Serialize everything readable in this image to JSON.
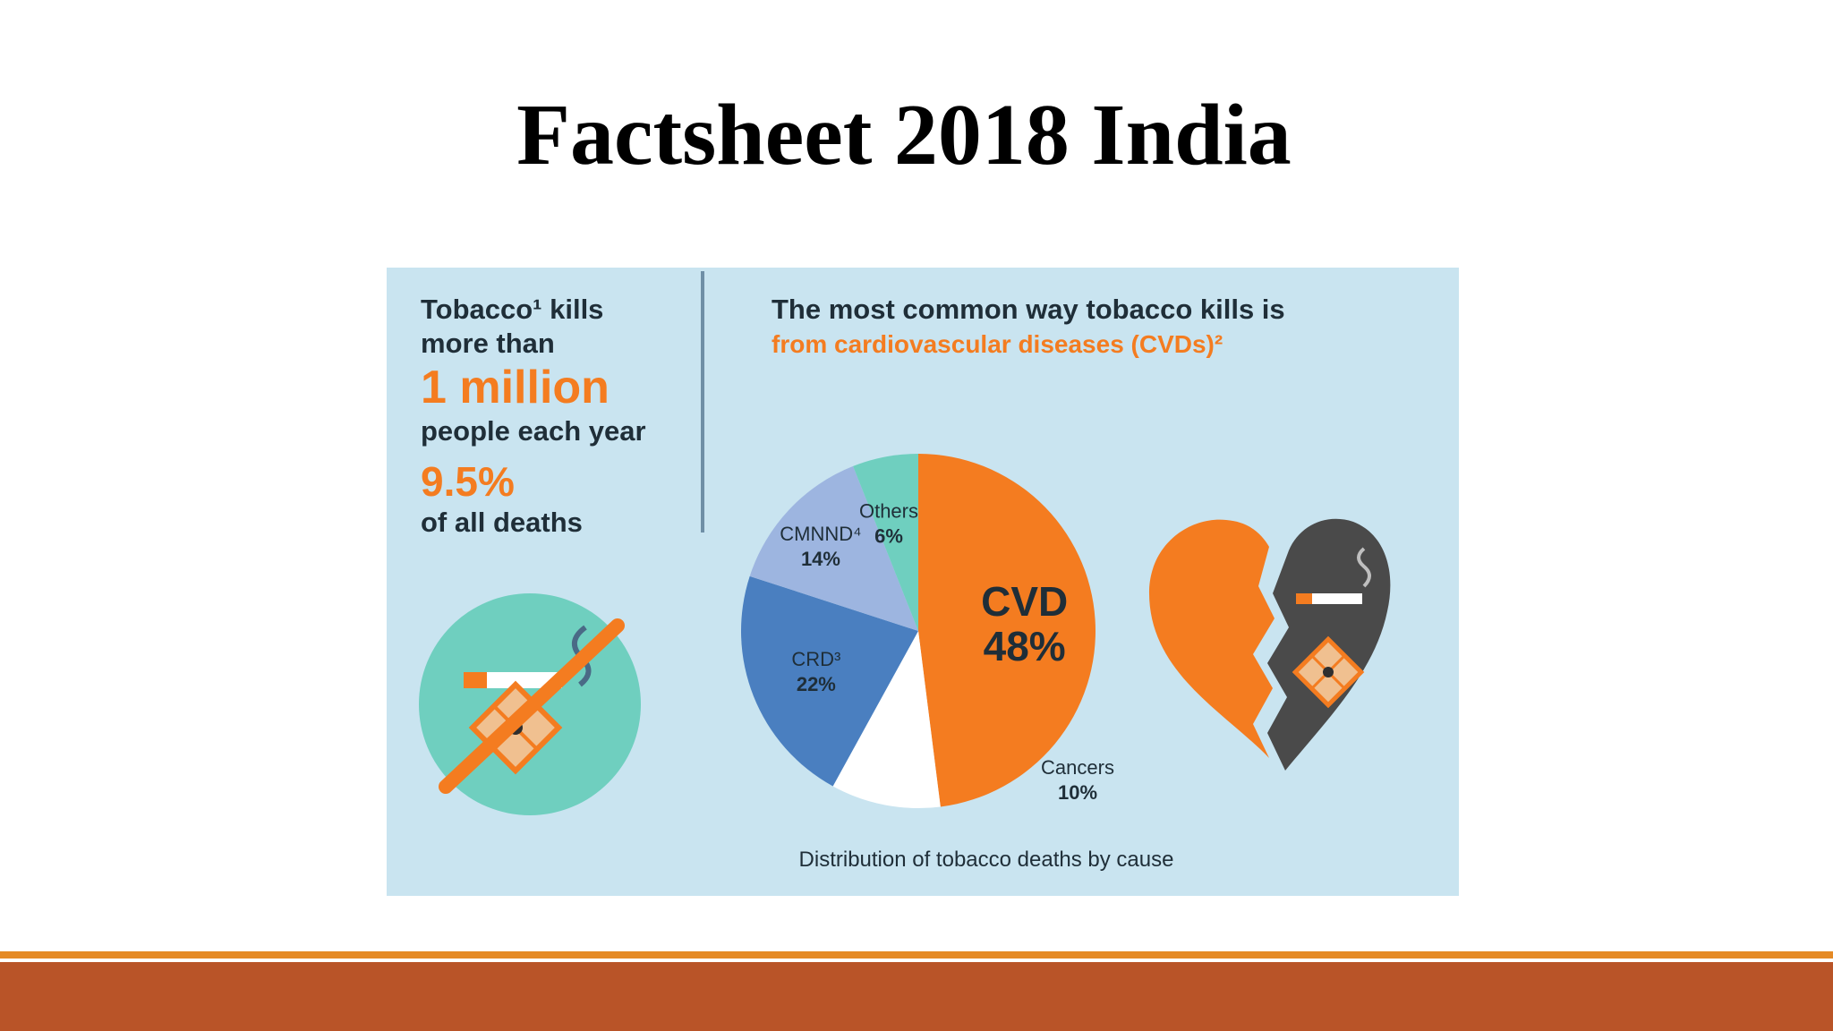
{
  "slide": {
    "title": "Factsheet 2018 India"
  },
  "stats": {
    "line1": "Tobacco¹ kills",
    "line2": "more than",
    "highlight": "1 million",
    "line3": "people each year",
    "percent": "9.5%",
    "line4": "of all deaths"
  },
  "headline": {
    "line1": "The most common way tobacco kills is",
    "line2": "from cardiovascular diseases (CVDs)²"
  },
  "chart_data": {
    "type": "pie",
    "title": "Distribution of tobacco deaths by cause",
    "slices": [
      {
        "label": "CVD",
        "value": 48,
        "display": "48%",
        "color": "#f47c20"
      },
      {
        "label": "Cancers",
        "value": 10,
        "display": "10%",
        "color": "#ffffff"
      },
      {
        "label": "CRD³",
        "value": 22,
        "display": "22%",
        "color": "#4a7fc0"
      },
      {
        "label": "CMNND⁴",
        "value": 14,
        "display": "14%",
        "color": "#9db5e0"
      },
      {
        "label": "Others",
        "value": 6,
        "display": "6%",
        "color": "#6fcfbf"
      }
    ]
  },
  "colors": {
    "panel": "#c9e4f0",
    "accent": "#f47c20",
    "bar_dark": "#b95428",
    "bar_light": "#e58a25"
  },
  "icons": [
    "no-smoking-icon",
    "broken-heart-icon"
  ]
}
